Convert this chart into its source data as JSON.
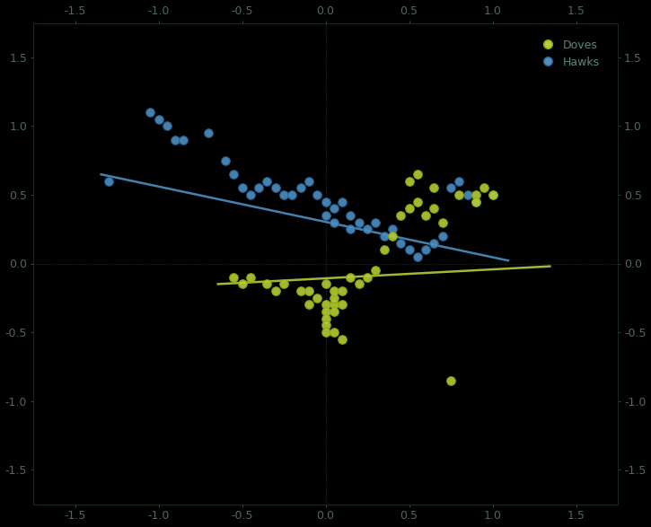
{
  "background_color": "#000000",
  "plot_bg_color": "#000000",
  "dove_color": "#b5cc3a",
  "hawk_color": "#4a90c4",
  "dove_edge_color": "#8aaa00",
  "hawk_edge_color": "#2a6090",
  "font_color": "#4a6a5a",
  "legend_text_color": "#5a8a7a",
  "xlim": [
    -1.75,
    1.75
  ],
  "ylim": [
    -1.75,
    1.75
  ],
  "xticks": [
    -1.5,
    -1.0,
    -0.5,
    0.0,
    0.5,
    1.0,
    1.5
  ],
  "yticks": [
    -1.5,
    -1.0,
    -0.5,
    0.0,
    0.5,
    1.0,
    1.5
  ],
  "hawks_x": [
    -1.3,
    -1.05,
    -1.0,
    -0.95,
    -0.9,
    -0.85,
    -0.7,
    -0.6,
    -0.55,
    -0.5,
    -0.45,
    -0.4,
    -0.35,
    -0.3,
    -0.25,
    -0.2,
    -0.15,
    -0.1,
    -0.05,
    0.0,
    0.0,
    0.05,
    0.05,
    0.1,
    0.15,
    0.15,
    0.2,
    0.25,
    0.3,
    0.35,
    0.4,
    0.45,
    0.5,
    0.55,
    0.6,
    0.65,
    0.7,
    0.75,
    0.8,
    0.85,
    0.9,
    1.0
  ],
  "hawks_y": [
    0.6,
    1.1,
    1.05,
    1.0,
    0.9,
    0.9,
    0.95,
    0.75,
    0.65,
    0.55,
    0.5,
    0.55,
    0.6,
    0.55,
    0.5,
    0.5,
    0.55,
    0.6,
    0.5,
    0.45,
    0.35,
    0.4,
    0.3,
    0.45,
    0.35,
    0.25,
    0.3,
    0.25,
    0.3,
    0.2,
    0.25,
    0.15,
    0.1,
    0.05,
    0.1,
    0.15,
    0.2,
    0.55,
    0.6,
    0.5,
    0.45,
    0.5
  ],
  "doves_x": [
    -0.55,
    -0.5,
    -0.45,
    -0.35,
    -0.3,
    -0.25,
    -0.15,
    -0.1,
    -0.1,
    -0.05,
    0.0,
    0.0,
    0.0,
    0.0,
    0.0,
    0.05,
    0.05,
    0.05,
    0.05,
    0.1,
    0.1,
    0.15,
    0.2,
    0.25,
    0.3,
    0.35,
    0.4,
    0.45,
    0.5,
    0.55,
    0.6,
    0.65,
    0.7,
    0.75,
    0.8,
    0.9,
    0.95,
    1.0,
    0.0,
    0.05,
    0.1,
    0.5,
    0.55,
    0.65,
    0.9
  ],
  "doves_y": [
    -0.1,
    -0.15,
    -0.1,
    -0.15,
    -0.2,
    -0.15,
    -0.2,
    -0.2,
    -0.3,
    -0.25,
    -0.3,
    -0.35,
    -0.4,
    -0.45,
    -0.15,
    -0.3,
    -0.35,
    -0.25,
    -0.2,
    -0.2,
    -0.3,
    -0.1,
    -0.15,
    -0.1,
    -0.05,
    0.1,
    0.2,
    0.35,
    0.4,
    0.45,
    0.35,
    0.4,
    0.3,
    -0.85,
    0.5,
    0.5,
    0.55,
    0.5,
    -0.5,
    -0.5,
    -0.55,
    0.6,
    0.65,
    0.55,
    0.45
  ],
  "hawk_trend_x": [
    -1.35,
    1.1
  ],
  "hawk_trend_y": [
    0.65,
    0.02
  ],
  "dove_trend_x": [
    -0.65,
    1.35
  ],
  "dove_trend_y": [
    -0.15,
    -0.02
  ],
  "marker_size": 48,
  "hawk_lw": 1.8,
  "dove_lw": 1.8
}
